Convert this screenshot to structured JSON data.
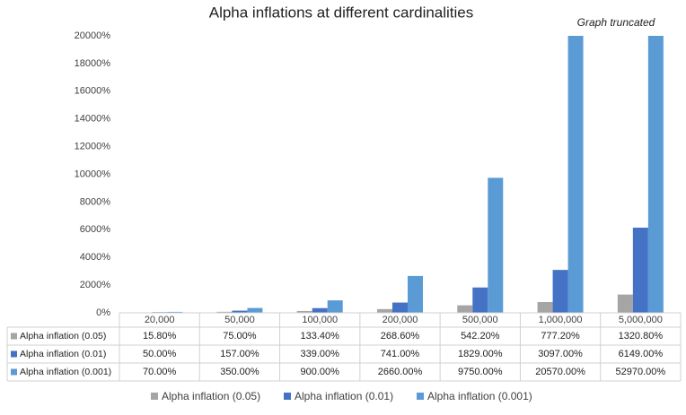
{
  "chart_data": {
    "type": "bar",
    "title": "Alpha inflations at different cardinalities",
    "annotation": "Graph truncated",
    "categories": [
      "20,000",
      "50,000",
      "100,000",
      "200,000",
      "500,000",
      "1,000,000",
      "5,000,000"
    ],
    "series": [
      {
        "name": "Alpha inflation (0.05)",
        "color": "#a5a5a5",
        "values": [
          15.8,
          75,
          133.4,
          268.6,
          542.2,
          777.2,
          1320.8
        ],
        "value_labels": [
          "15.80%",
          "75.00%",
          "133.40%",
          "268.60%",
          "542.20%",
          "777.20%",
          "1320.80%"
        ]
      },
      {
        "name": "Alpha inflation (0.01)",
        "color": "#4472c4",
        "values": [
          50,
          157,
          339,
          741,
          1829,
          3097,
          6149
        ],
        "value_labels": [
          "50.00%",
          "157.00%",
          "339.00%",
          "741.00%",
          "1829.00%",
          "3097.00%",
          "6149.00%"
        ]
      },
      {
        "name": "Alpha inflation (0.001)",
        "color": "#5b9bd5",
        "values": [
          70,
          350,
          900,
          2660,
          9750,
          20570,
          52970
        ],
        "value_labels": [
          "70.00%",
          "350.00%",
          "900.00%",
          "2660.00%",
          "9750.00%",
          "20570.00%",
          "52970.00%"
        ]
      }
    ],
    "ylim": [
      0,
      20000
    ],
    "yticks": [
      {
        "value": 0,
        "label": "0%"
      },
      {
        "value": 2000,
        "label": "2000%"
      },
      {
        "value": 4000,
        "label": "4000%"
      },
      {
        "value": 6000,
        "label": "6000%"
      },
      {
        "value": 8000,
        "label": "8000%"
      },
      {
        "value": 10000,
        "label": "10000%"
      },
      {
        "value": 12000,
        "label": "12000%"
      },
      {
        "value": 14000,
        "label": "14000%"
      },
      {
        "value": 16000,
        "label": "16000%"
      },
      {
        "value": 18000,
        "label": "18000%"
      },
      {
        "value": 20000,
        "label": "20000%"
      }
    ],
    "grid": false,
    "legend": "bottom"
  }
}
